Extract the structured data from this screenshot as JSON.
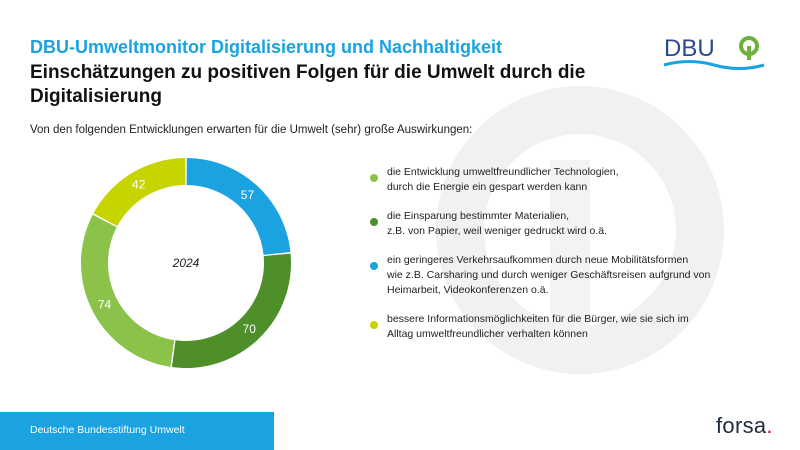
{
  "header": {
    "supertitle": "DBU-Umweltmonitor Digitalisierung und Nachhaltigkeit",
    "title": "Einschätzungen zu positiven Folgen für die Umwelt durch die Digitalisierung"
  },
  "subtitle": "Von den folgenden Entwicklungen erwarten für die Umwelt (sehr) große Auswirkungen:",
  "logo": {
    "text": "DBU"
  },
  "footer": {
    "organization": "Deutsche Bundesstiftung Umwelt",
    "brand": "forsa",
    "brand_dot": "."
  },
  "colors": {
    "accent_blue": "#1aa3e0",
    "light_green": "#8bc34a",
    "dark_green": "#4e8f2a",
    "yellow_green": "#c6d400",
    "blue": "#1aa3e0"
  },
  "chart_data": {
    "type": "donut",
    "center_label": "2024",
    "slices": [
      {
        "label": "ein geringeres Verkehrsaufkommen durch neue Mobilitätsformen\nwie z.B. Carsharing und durch weniger Geschäftsreisen aufgrund von\nHeimarbeit, Videokonferenzen o.ä.",
        "value": 57,
        "color": "#1aa3e0"
      },
      {
        "label": "die Einsparung bestimmter Materialien,\nz.B. von Papier, weil weniger gedruckt wird o.ä.",
        "value": 70,
        "color": "#4e8f2a"
      },
      {
        "label": "die Entwicklung umweltfreundlicher Technologien,\ndurch die Energie ein gespart werden kann",
        "value": 74,
        "color": "#8bc34a"
      },
      {
        "label": "bessere Informationsmöglichkeiten für die Bürger, wie sie sich im\nAlltag umweltfreundlicher verhalten können",
        "value": 42,
        "color": "#c6d400"
      }
    ],
    "legend_order": [
      2,
      1,
      0,
      3
    ],
    "legend_placement": "right"
  }
}
